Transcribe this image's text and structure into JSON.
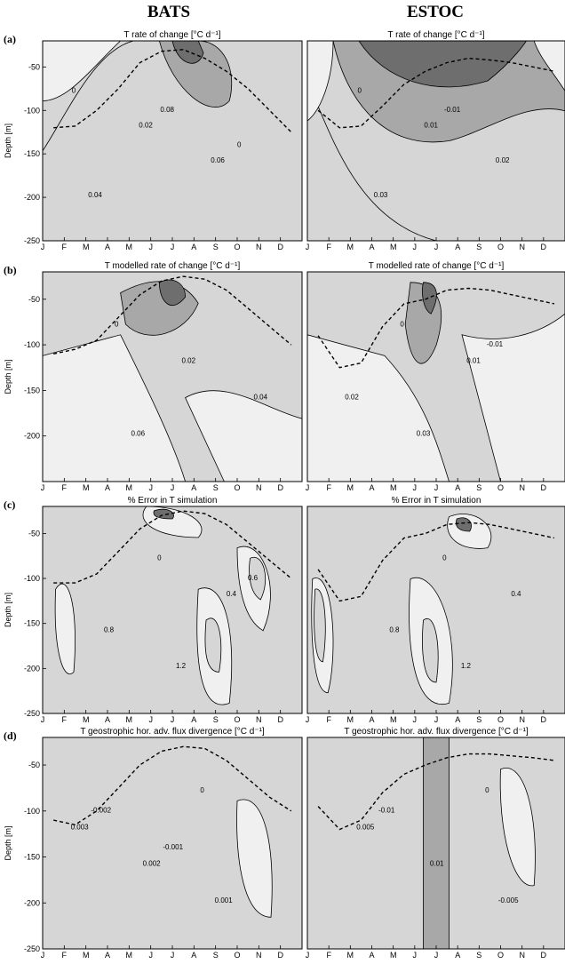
{
  "column_headers": [
    "BATS",
    "ESTOC"
  ],
  "chart_data": [
    {
      "type": "heatmap",
      "panel": "(a)",
      "station": "BATS",
      "title": "T rate of change [°C d⁻¹]",
      "xlabel": "",
      "ylabel": "Depth [m]",
      "ylim": [
        -250,
        -20
      ],
      "xticks": [
        "J",
        "F",
        "M",
        "A",
        "M",
        "J",
        "J",
        "A",
        "S",
        "O",
        "N",
        "D"
      ],
      "yticks": [
        -50,
        -100,
        -150,
        -200,
        -250
      ],
      "contour_labels": [
        "0",
        "0.02",
        "0.06",
        "0.04",
        "0.08",
        "0"
      ],
      "mixed_layer_depth": [
        -120,
        -118,
        -100,
        -75,
        -45,
        -32,
        -30,
        -40,
        -55,
        -75,
        -100,
        -125
      ]
    },
    {
      "type": "heatmap",
      "panel": "(a)",
      "station": "ESTOC",
      "title": "T rate of change [°C d⁻¹]",
      "xlabel": "",
      "ylabel": "",
      "ylim": [
        -250,
        -20
      ],
      "xticks": [
        "J",
        "F",
        "M",
        "A",
        "M",
        "J",
        "J",
        "A",
        "S",
        "O",
        "N",
        "D"
      ],
      "contour_labels": [
        "0",
        "0.01",
        "0.02",
        "0.03",
        "-0.01"
      ],
      "mixed_layer_depth": [
        -100,
        -120,
        -118,
        -95,
        -70,
        -55,
        -45,
        -40,
        -42,
        -45,
        -50,
        -55
      ]
    },
    {
      "type": "heatmap",
      "panel": "(b)",
      "station": "BATS",
      "title": "T modelled rate of change [°C d⁻¹]",
      "xlabel": "",
      "ylabel": "Depth [m]",
      "ylim": [
        -250,
        -20
      ],
      "xticks": [
        "J",
        "F",
        "M",
        "A",
        "M",
        "J",
        "J",
        "A",
        "S",
        "O",
        "N",
        "D"
      ],
      "yticks": [
        -50,
        -100,
        -150,
        -200
      ],
      "contour_labels": [
        "0",
        "0.02",
        "0.04",
        "0.06"
      ],
      "mixed_layer_depth": [
        -110,
        -105,
        -95,
        -70,
        -45,
        -30,
        -25,
        -28,
        -40,
        -60,
        -80,
        -100
      ]
    },
    {
      "type": "heatmap",
      "panel": "(b)",
      "station": "ESTOC",
      "title": "T modelled rate of change [°C d⁻¹]",
      "xlabel": "",
      "ylabel": "",
      "ylim": [
        -250,
        -20
      ],
      "xticks": [
        "J",
        "F",
        "M",
        "A",
        "M",
        "J",
        "J",
        "A",
        "S",
        "O",
        "N",
        "D"
      ],
      "contour_labels": [
        "0",
        "0.01",
        "0.02",
        "0.03",
        "-0.01"
      ],
      "mixed_layer_depth": [
        -90,
        -125,
        -120,
        -80,
        -55,
        -50,
        -40,
        -38,
        -40,
        -45,
        -50,
        -55
      ]
    },
    {
      "type": "heatmap",
      "panel": "(c)",
      "station": "BATS",
      "title": "% Error in T simulation",
      "xlabel": "",
      "ylabel": "Depth [m]",
      "ylim": [
        -250,
        -20
      ],
      "xticks": [
        "J",
        "F",
        "M",
        "A",
        "M",
        "J",
        "J",
        "A",
        "S",
        "O",
        "N",
        "D"
      ],
      "yticks": [
        -50,
        -100,
        -150,
        -200,
        -250
      ],
      "contour_labels": [
        "0",
        "0.4",
        "0.8",
        "1.2",
        "0.6"
      ],
      "mixed_layer_depth": [
        -105,
        -105,
        -95,
        -70,
        -45,
        -30,
        -25,
        -28,
        -40,
        -60,
        -80,
        -100
      ]
    },
    {
      "type": "heatmap",
      "panel": "(c)",
      "station": "ESTOC",
      "title": "% Error in T simulation",
      "xlabel": "",
      "ylabel": "",
      "ylim": [
        -250,
        -20
      ],
      "xticks": [
        "J",
        "F",
        "M",
        "A",
        "M",
        "J",
        "J",
        "A",
        "S",
        "O",
        "N",
        "D"
      ],
      "contour_labels": [
        "0",
        "0.4",
        "0.8",
        "1.2"
      ],
      "mixed_layer_depth": [
        -90,
        -125,
        -120,
        -80,
        -55,
        -50,
        -40,
        -38,
        -40,
        -45,
        -50,
        -55
      ]
    },
    {
      "type": "heatmap",
      "panel": "(d)",
      "station": "BATS",
      "title": "T geostrophic hor. adv. flux divergence [°C d⁻¹]",
      "xlabel": "",
      "ylabel": "Depth [m]",
      "ylim": [
        -250,
        -20
      ],
      "xticks": [
        "J",
        "F",
        "M",
        "A",
        "M",
        "J",
        "J",
        "A",
        "S",
        "O",
        "N",
        "D"
      ],
      "yticks": [
        -50,
        -100,
        -150,
        -200,
        -250
      ],
      "contour_labels": [
        "0",
        "0.003",
        "0.002",
        "0.001",
        "-0.002",
        "-0.001"
      ],
      "mixed_layer_depth": [
        -110,
        -115,
        -100,
        -75,
        -50,
        -35,
        -30,
        -32,
        -45,
        -65,
        -85,
        -100
      ]
    },
    {
      "type": "heatmap",
      "panel": "(d)",
      "station": "ESTOC",
      "title": "T geostrophic hor. adv. flux divergence [°C d⁻¹]",
      "xlabel": "",
      "ylabel": "",
      "ylim": [
        -250,
        -20
      ],
      "xticks": [
        "J",
        "F",
        "M",
        "A",
        "M",
        "J",
        "J",
        "A",
        "S",
        "O",
        "N",
        "D"
      ],
      "contour_labels": [
        "0",
        "0.005",
        "0.01",
        "-0.005",
        "-0.01"
      ],
      "mixed_layer_depth": [
        -95,
        -120,
        -110,
        -80,
        -60,
        -50,
        -42,
        -38,
        -38,
        -40,
        -42,
        -45
      ]
    }
  ],
  "colors": {
    "frame": "#000000",
    "fill_light": "#f0f0f0",
    "fill_mid": "#d6d6d6",
    "fill_dark": "#a8a8a8",
    "fill_darkest": "#6e6e6e",
    "mld_dash": "#000000"
  }
}
